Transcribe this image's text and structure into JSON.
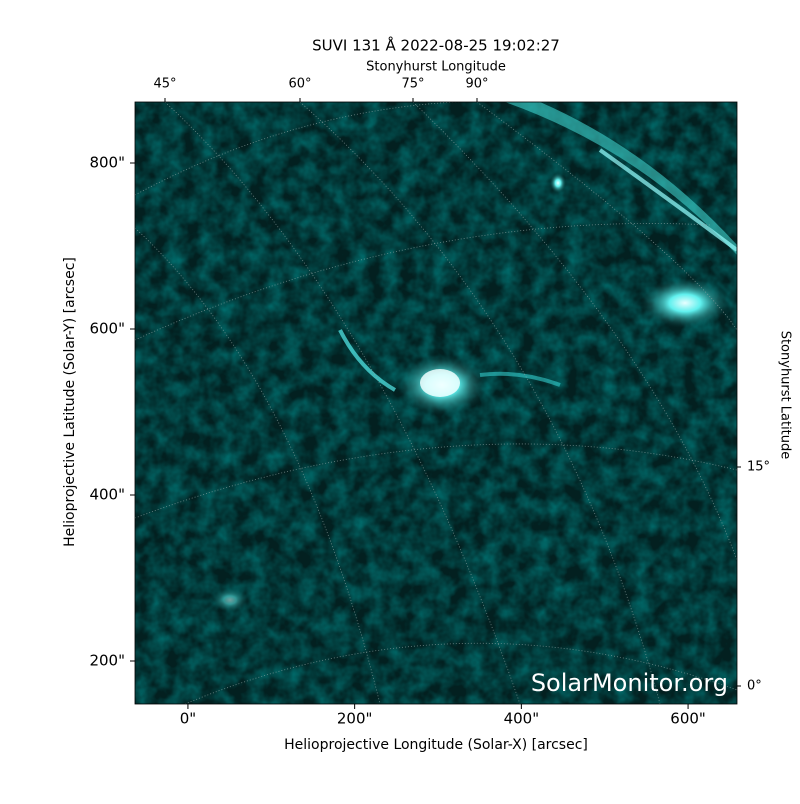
{
  "chart_data": {
    "type": "image",
    "title": "SUVI 131 Å 2022-08-25 19:02:27",
    "top_axis_label": "Stonyhurst Longitude",
    "top_tick_labels": [
      "45°",
      "60°",
      "75°",
      "90°"
    ],
    "right_axis_label": "Stonyhurst Latitude",
    "right_tick_labels": [
      "15°",
      "0°"
    ],
    "x_label": "Helioprojective Longitude (Solar-X) [arcsec]",
    "y_label": "Helioprojective Latitude (Solar-Y) [arcsec]",
    "xlim": [
      -63.5,
      658.7
    ],
    "ylim": [
      148.2,
      873.5
    ],
    "xticks": [
      {
        "value": 0,
        "label": "0\""
      },
      {
        "value": 200,
        "label": "200\""
      },
      {
        "value": 400,
        "label": "400\""
      },
      {
        "value": 600,
        "label": "600\""
      }
    ],
    "yticks": [
      {
        "value": 200,
        "label": "200\""
      },
      {
        "value": 400,
        "label": "400\""
      },
      {
        "value": 600,
        "label": "600\""
      },
      {
        "value": 800,
        "label": "800\""
      }
    ],
    "watermark": "SolarMonitor.org"
  }
}
